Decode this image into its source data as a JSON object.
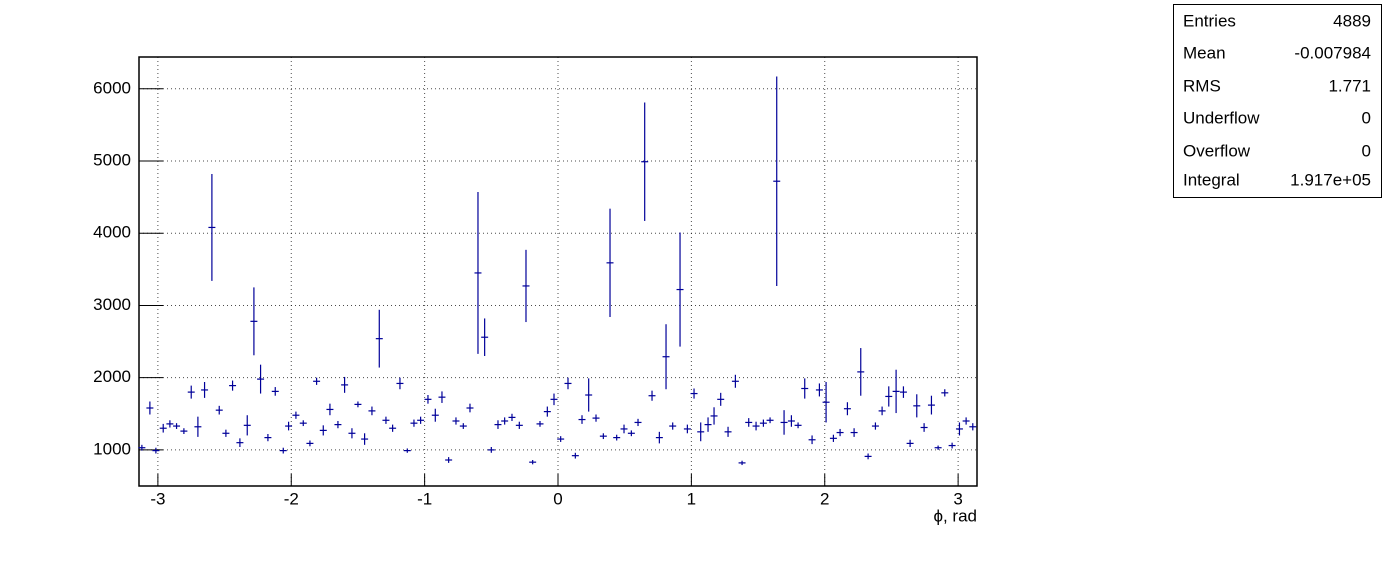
{
  "chart_data": {
    "type": "errorbar",
    "x_label": "ϕ, rad",
    "x": [
      -3.12,
      -3.06,
      -3.015,
      -2.96,
      -2.91,
      -2.86,
      -2.805,
      -2.75,
      -2.7,
      -2.65,
      -2.595,
      -2.54,
      -2.49,
      -2.44,
      -2.385,
      -2.33,
      -2.28,
      -2.23,
      -2.175,
      -2.12,
      -2.06,
      -2.02,
      -1.965,
      -1.91,
      -1.86,
      -1.81,
      -1.76,
      -1.71,
      -1.65,
      -1.6,
      -1.545,
      -1.5,
      -1.45,
      -1.395,
      -1.34,
      -1.29,
      -1.24,
      -1.185,
      -1.13,
      -1.08,
      -1.03,
      -0.975,
      -0.92,
      -0.87,
      -0.82,
      -0.765,
      -0.71,
      -0.66,
      -0.6,
      -0.55,
      -0.5,
      -0.45,
      -0.4,
      -0.345,
      -0.29,
      -0.24,
      -0.19,
      -0.135,
      -0.08,
      -0.03,
      0.02,
      0.075,
      0.13,
      0.18,
      0.23,
      0.285,
      0.34,
      0.39,
      0.44,
      0.495,
      0.55,
      0.6,
      0.65,
      0.705,
      0.76,
      0.81,
      0.86,
      0.915,
      0.97,
      1.02,
      1.07,
      1.125,
      1.17,
      1.22,
      1.275,
      1.33,
      1.38,
      1.43,
      1.485,
      1.54,
      1.59,
      1.64,
      1.695,
      1.75,
      1.8,
      1.85,
      1.905,
      1.96,
      2.01,
      2.065,
      2.115,
      2.17,
      2.22,
      2.27,
      2.325,
      2.38,
      2.43,
      2.48,
      2.535,
      2.59,
      2.64,
      2.69,
      2.745,
      2.8,
      2.85,
      2.9,
      2.955,
      3.01,
      3.06,
      3.11
    ],
    "series": [
      {
        "color": "#000099",
        "values": [
          1030,
          1580,
          990,
          1300,
          1360,
          1330,
          1260,
          1800,
          1320,
          1830,
          4080,
          1550,
          1230,
          1890,
          1100,
          1340,
          2780,
          1980,
          1170,
          1810,
          990,
          1330,
          1480,
          1370,
          1090,
          1950,
          1270,
          1560,
          1350,
          1900,
          1230,
          1630,
          1150,
          1540,
          2540,
          1410,
          1300,
          1920,
          990,
          1370,
          1410,
          1700,
          1480,
          1730,
          860,
          1400,
          1330,
          1580,
          3450,
          2560,
          1000,
          1350,
          1400,
          1450,
          1340,
          3270,
          830,
          1360,
          1530,
          1700,
          1150,
          1920,
          920,
          1420,
          1760,
          1440,
          1190,
          3590,
          1170,
          1290,
          1230,
          1380,
          4990,
          1750,
          1170,
          2290,
          1330,
          3220,
          1290,
          1780,
          1250,
          1350,
          1470,
          1700,
          1250,
          1950,
          820,
          1380,
          1330,
          1370,
          1410,
          4720,
          1380,
          1400,
          1340,
          1850,
          1140,
          1830,
          1660,
          1160,
          1240,
          1570,
          1240,
          2080,
          910,
          1330,
          1540,
          1740,
          1810,
          1800,
          1090,
          1610,
          1310,
          1620,
          1030,
          1790,
          1060,
          1290,
          1400,
          1320
        ],
        "errors": [
          40,
          90,
          40,
          60,
          50,
          40,
          40,
          90,
          140,
          110,
          740,
          60,
          50,
          70,
          60,
          140,
          470,
          200,
          50,
          60,
          40,
          60,
          50,
          40,
          40,
          50,
          70,
          80,
          50,
          110,
          70,
          40,
          80,
          60,
          400,
          50,
          50,
          80,
          30,
          50,
          50,
          60,
          90,
          80,
          40,
          50,
          40,
          60,
          1120,
          260,
          40,
          60,
          50,
          50,
          50,
          500,
          30,
          40,
          70,
          80,
          40,
          80,
          40,
          60,
          230,
          50,
          40,
          750,
          40,
          60,
          40,
          50,
          820,
          70,
          80,
          450,
          50,
          790,
          60,
          70,
          130,
          100,
          120,
          90,
          70,
          90,
          30,
          60,
          60,
          50,
          40,
          1450,
          170,
          80,
          40,
          140,
          60,
          90,
          280,
          50,
          50,
          90,
          60,
          330,
          40,
          50,
          60,
          140,
          300,
          80,
          50,
          160,
          60,
          130,
          30,
          50,
          40,
          90,
          50,
          50
        ],
        "axis": "y"
      }
    ],
    "xlim": [
      -3.1416,
      3.1416
    ],
    "xticks": [
      -3,
      -2,
      -1,
      0,
      1,
      2,
      3
    ],
    "ylim": [
      500,
      6440
    ],
    "yticks": [
      1000,
      2000,
      3000,
      4000,
      5000,
      6000
    ],
    "grid": true
  },
  "stats": {
    "rows": [
      [
        "Entries",
        "4889"
      ],
      [
        "Mean",
        "-0.007984"
      ],
      [
        "RMS",
        "1.771"
      ],
      [
        "Underflow",
        "0"
      ],
      [
        "Overflow",
        "0"
      ],
      [
        "Integral",
        "1.917e+05"
      ]
    ]
  }
}
